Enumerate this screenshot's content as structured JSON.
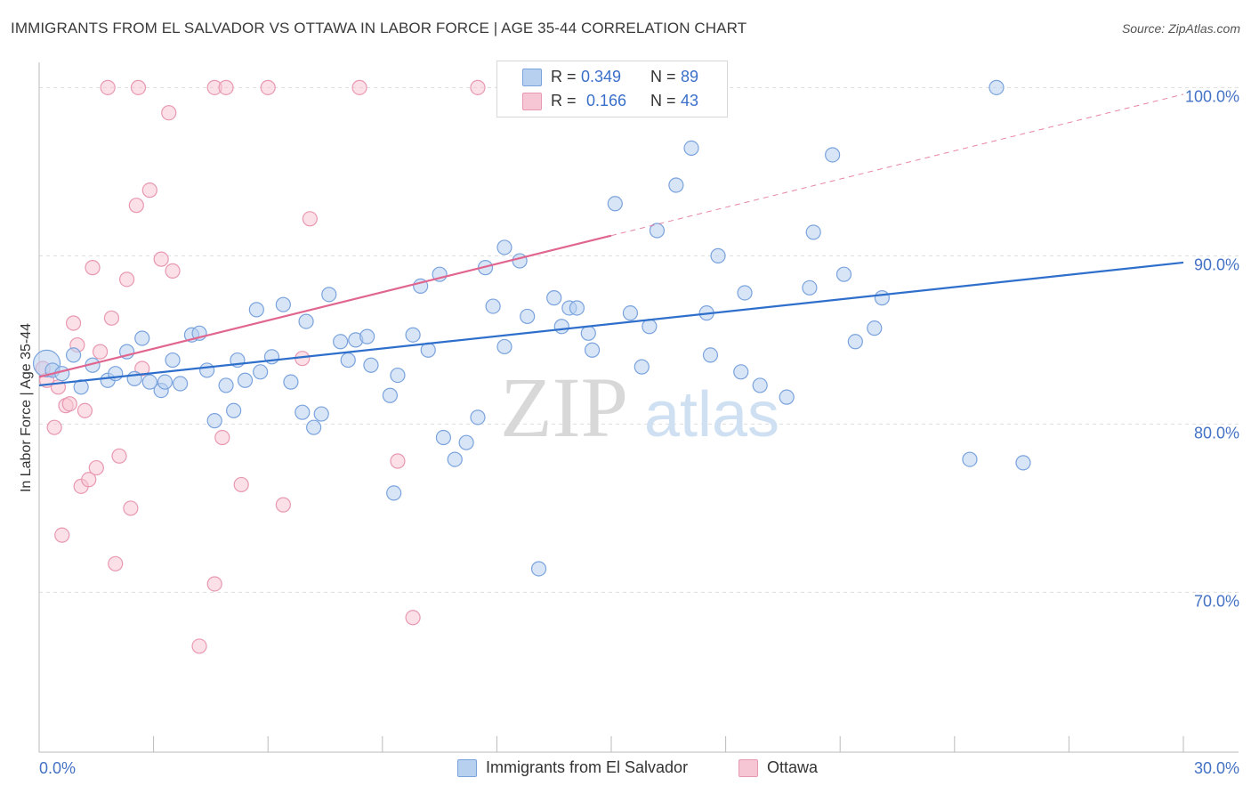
{
  "title": "IMMIGRANTS FROM EL SALVADOR VS OTTAWA IN LABOR FORCE | AGE 35-44 CORRELATION CHART",
  "source": "Source: ZipAtlas.com",
  "watermark": {
    "zip": "ZIP",
    "atlas": "atlas"
  },
  "colors": {
    "blue_fill": "#b8d0f0",
    "blue_stroke": "#7aa3dd",
    "blue_line": "#2f6fcc",
    "pink_fill": "#f7c6d4",
    "pink_stroke": "#e898b0",
    "pink_line": "#e0668f",
    "tick_label": "#4472c4",
    "grid": "#dddddd"
  },
  "legend_top": {
    "rows": [
      {
        "series": "blue",
        "r_label": "R = ",
        "r_value": "0.349",
        "n_label": "N = ",
        "n_value": "89"
      },
      {
        "series": "pink",
        "r_label": "R = ",
        "r_value": "0.166",
        "n_label": "N = ",
        "n_value": "43"
      }
    ]
  },
  "legend_bottom": [
    {
      "series": "blue",
      "label": "Immigrants from El Salvador"
    },
    {
      "series": "pink",
      "label": "Ottawa"
    }
  ],
  "chart_data": {
    "type": "scatter",
    "title": "IMMIGRANTS FROM EL SALVADOR VS OTTAWA IN LABOR FORCE | AGE 35-44 CORRELATION CHART",
    "xlabel": "",
    "ylabel": "In Labor Force | Age 35-44",
    "xlim": [
      0,
      30
    ],
    "ylim": [
      60.5,
      101.5
    ],
    "x_tick_labels": [
      {
        "value": 0,
        "label": "0.0%"
      },
      {
        "value": 30,
        "label": "30.0%"
      }
    ],
    "x_minor_ticks": [
      3,
      6,
      9,
      12,
      15,
      18,
      21,
      24,
      27
    ],
    "y_ticks": [
      {
        "value": 70,
        "label": "70.0%"
      },
      {
        "value": 80,
        "label": "80.0%"
      },
      {
        "value": 90,
        "label": "90.0%"
      },
      {
        "value": 100,
        "label": "100.0%"
      }
    ],
    "grid": true,
    "series": [
      {
        "name": "Immigrants from El Salvador",
        "color": "blue",
        "trend": {
          "x": [
            0,
            30
          ],
          "y": [
            82.3,
            89.6
          ],
          "dashed_extension": false
        },
        "points": [
          [
            0.2,
            83.6,
            "big"
          ],
          [
            0.35,
            83.2
          ],
          [
            0.6,
            83.0
          ],
          [
            0.9,
            84.1
          ],
          [
            1.1,
            82.2
          ],
          [
            1.4,
            83.5
          ],
          [
            1.8,
            82.6
          ],
          [
            2.0,
            83.0
          ],
          [
            2.3,
            84.3
          ],
          [
            2.5,
            82.7
          ],
          [
            2.7,
            85.1
          ],
          [
            2.9,
            82.5
          ],
          [
            3.2,
            82.0
          ],
          [
            3.3,
            82.5
          ],
          [
            3.5,
            83.8
          ],
          [
            3.7,
            82.4
          ],
          [
            4.0,
            85.3
          ],
          [
            4.2,
            85.4
          ],
          [
            4.4,
            83.2
          ],
          [
            4.6,
            80.2
          ],
          [
            4.9,
            82.3
          ],
          [
            5.1,
            80.8
          ],
          [
            5.2,
            83.8
          ],
          [
            5.4,
            82.6
          ],
          [
            5.7,
            86.8
          ],
          [
            5.8,
            83.1
          ],
          [
            6.1,
            84.0
          ],
          [
            6.4,
            87.1
          ],
          [
            6.6,
            82.5
          ],
          [
            6.9,
            80.7
          ],
          [
            7.0,
            86.1
          ],
          [
            7.2,
            79.8
          ],
          [
            7.4,
            80.6
          ],
          [
            7.6,
            87.7
          ],
          [
            7.9,
            84.9
          ],
          [
            8.1,
            83.8
          ],
          [
            8.3,
            85.0
          ],
          [
            8.6,
            85.2
          ],
          [
            8.7,
            83.5
          ],
          [
            9.2,
            81.7
          ],
          [
            9.3,
            75.9
          ],
          [
            9.4,
            82.9
          ],
          [
            9.8,
            85.3
          ],
          [
            10.0,
            88.2
          ],
          [
            10.2,
            84.4
          ],
          [
            10.5,
            88.9
          ],
          [
            10.6,
            79.2
          ],
          [
            10.9,
            77.9
          ],
          [
            11.2,
            78.9
          ],
          [
            11.5,
            80.4
          ],
          [
            11.7,
            89.3
          ],
          [
            11.9,
            87.0
          ],
          [
            12.2,
            84.6
          ],
          [
            12.2,
            90.5
          ],
          [
            12.6,
            89.7
          ],
          [
            12.8,
            86.4
          ],
          [
            13.1,
            71.4
          ],
          [
            13.5,
            87.5
          ],
          [
            13.7,
            85.8
          ],
          [
            13.9,
            86.9
          ],
          [
            14.1,
            86.9
          ],
          [
            14.4,
            85.4
          ],
          [
            14.5,
            84.4
          ],
          [
            15.1,
            93.1
          ],
          [
            15.5,
            86.6
          ],
          [
            15.8,
            83.4
          ],
          [
            16.0,
            85.8
          ],
          [
            16.2,
            91.5
          ],
          [
            16.7,
            94.2
          ],
          [
            17.1,
            96.4
          ],
          [
            17.5,
            86.6
          ],
          [
            17.6,
            84.1
          ],
          [
            17.8,
            90.0
          ],
          [
            18.4,
            83.1
          ],
          [
            18.5,
            87.8
          ],
          [
            18.9,
            82.3
          ],
          [
            19.6,
            81.6
          ],
          [
            20.2,
            88.1
          ],
          [
            20.3,
            91.4
          ],
          [
            20.8,
            96.0
          ],
          [
            21.1,
            88.9
          ],
          [
            21.4,
            84.9
          ],
          [
            21.9,
            85.7
          ],
          [
            22.1,
            87.5
          ],
          [
            24.4,
            77.9
          ],
          [
            25.1,
            100.0
          ],
          [
            25.8,
            77.7
          ]
        ]
      },
      {
        "name": "Ottawa",
        "color": "pink",
        "trend": {
          "x": [
            0,
            15.0
          ],
          "y": [
            82.8,
            91.2
          ],
          "dashed_extension": {
            "x": [
              15.0,
              30
            ],
            "y": [
              91.2,
              99.6
            ]
          }
        },
        "points": [
          [
            0.1,
            83.3
          ],
          [
            0.2,
            82.6
          ],
          [
            0.4,
            79.8
          ],
          [
            0.5,
            82.2
          ],
          [
            0.6,
            73.4
          ],
          [
            0.7,
            81.1
          ],
          [
            0.8,
            81.2
          ],
          [
            0.9,
            86.0
          ],
          [
            1.0,
            84.7
          ],
          [
            1.1,
            76.3
          ],
          [
            1.2,
            80.8
          ],
          [
            1.3,
            76.7
          ],
          [
            1.4,
            89.3
          ],
          [
            1.5,
            77.4
          ],
          [
            1.6,
            84.3
          ],
          [
            1.8,
            100.0
          ],
          [
            1.9,
            86.3
          ],
          [
            2.0,
            71.7
          ],
          [
            2.1,
            78.1
          ],
          [
            2.3,
            88.6
          ],
          [
            2.4,
            75.0
          ],
          [
            2.6,
            100.0
          ],
          [
            2.55,
            93.0
          ],
          [
            2.7,
            83.3
          ],
          [
            2.9,
            93.9
          ],
          [
            3.2,
            89.8
          ],
          [
            3.4,
            98.5
          ],
          [
            3.5,
            89.1
          ],
          [
            4.2,
            66.8
          ],
          [
            4.6,
            100.0
          ],
          [
            4.6,
            70.5
          ],
          [
            4.8,
            79.2
          ],
          [
            4.9,
            100.0
          ],
          [
            5.3,
            76.4
          ],
          [
            6.0,
            100.0
          ],
          [
            6.4,
            75.2
          ],
          [
            6.9,
            83.9
          ],
          [
            7.1,
            92.2
          ],
          [
            8.4,
            100.0
          ],
          [
            9.4,
            77.8
          ],
          [
            9.8,
            68.5
          ],
          [
            11.5,
            100.0
          ]
        ]
      }
    ]
  }
}
